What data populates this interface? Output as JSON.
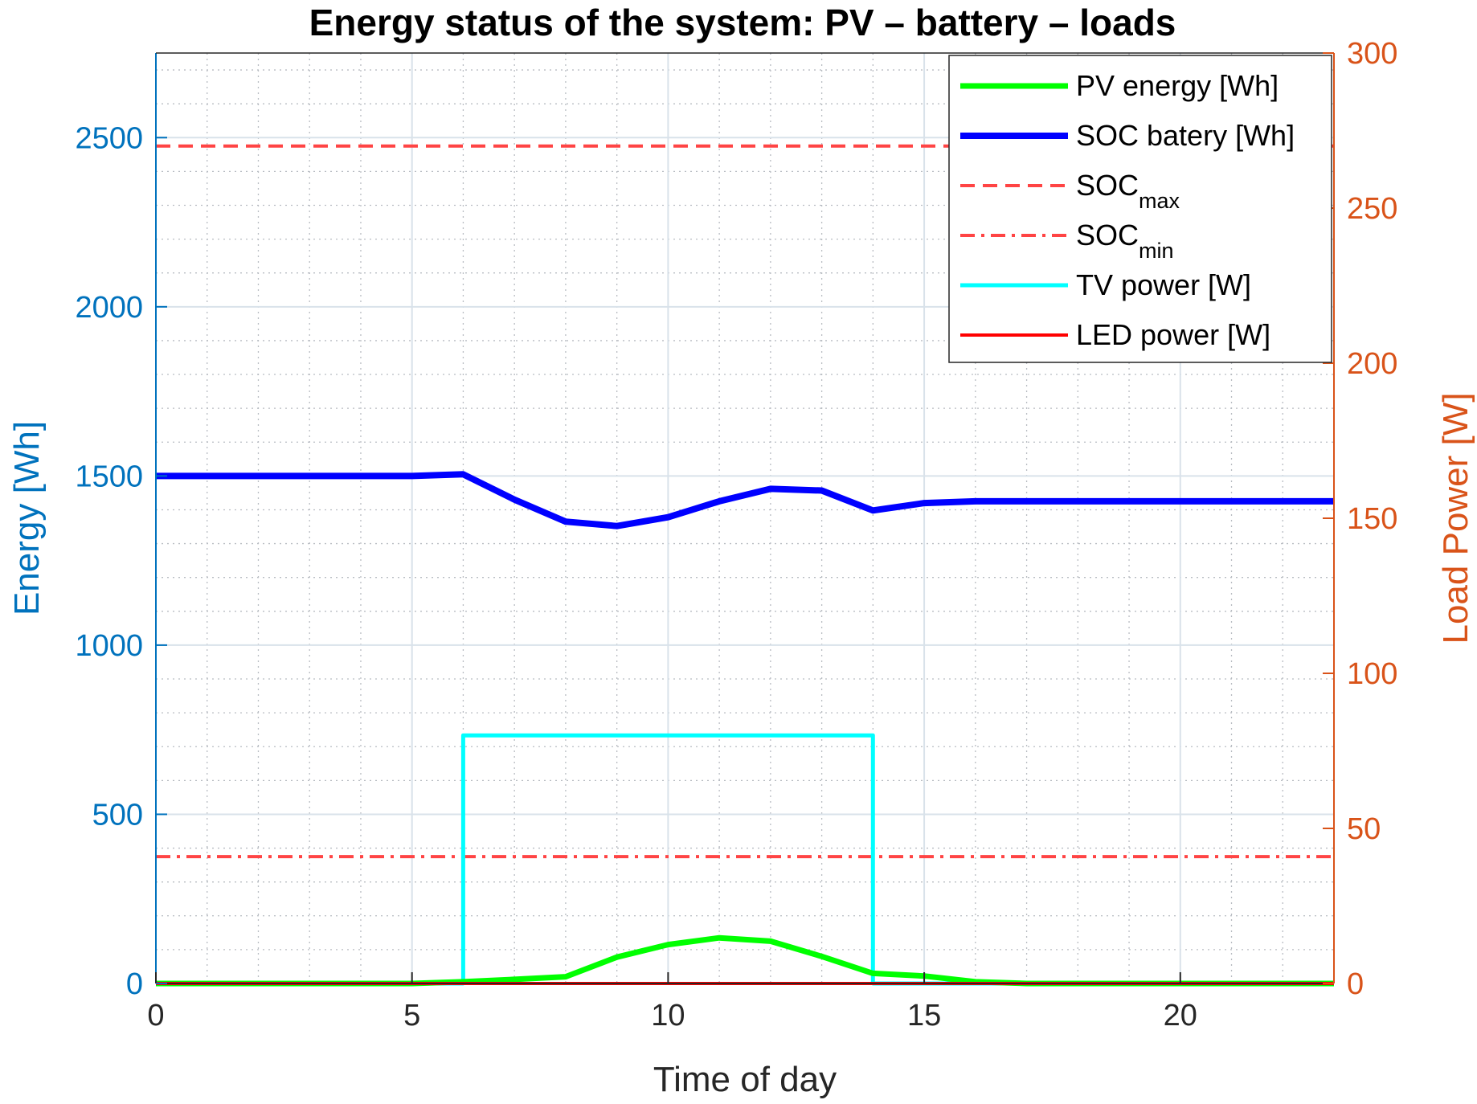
{
  "chart_data": {
    "type": "line",
    "title": "Energy status of the system: PV – battery – loads",
    "xlabel": "Time of day",
    "ylabel_left": "Energy [Wh]",
    "ylabel_right": "Load Power [W]",
    "xlim": [
      0,
      23
    ],
    "ylim_left": [
      0,
      2750
    ],
    "ylim_right": [
      0,
      300
    ],
    "xticks": [
      0,
      5,
      10,
      15,
      20
    ],
    "yticks_left": [
      0,
      500,
      1000,
      1500,
      2000,
      2500
    ],
    "yticks_right": [
      0,
      50,
      100,
      150,
      200,
      250,
      300
    ],
    "xtick_labels": [
      "0",
      "5",
      "10",
      "15",
      "20"
    ],
    "ytick_labels_left": [
      "0",
      "500",
      "1000",
      "1500",
      "2000",
      "2500"
    ],
    "ytick_labels_right": [
      "0",
      "50",
      "100",
      "150",
      "200",
      "250",
      "300"
    ],
    "grid": true,
    "legend_position": "top-right",
    "colors": {
      "left_axis": "#0072BD",
      "right_axis": "#D95319",
      "grid_major": "#d9e2ea",
      "grid_minor": "#b8bcc2"
    },
    "series": [
      {
        "name": "PV energy [Wh]",
        "legend_label": "PV energy [Wh]",
        "axis": "left",
        "color": "#00ff00",
        "style": "solid",
        "width": 7,
        "x": [
          0,
          1,
          2,
          3,
          4,
          5,
          6,
          7,
          8,
          9,
          10,
          11,
          12,
          13,
          14,
          15,
          16,
          17,
          18,
          19,
          20,
          21,
          22,
          23
        ],
        "y": [
          0,
          0,
          0,
          0,
          0,
          0,
          5,
          12,
          20,
          78,
          115,
          135,
          125,
          80,
          30,
          22,
          5,
          0,
          0,
          0,
          0,
          0,
          0,
          0
        ]
      },
      {
        "name": "SOC batery [Wh]",
        "legend_label": "SOC batery [Wh]",
        "axis": "left",
        "color": "#0000ff",
        "style": "solid",
        "width": 8,
        "x": [
          0,
          1,
          2,
          3,
          4,
          5,
          6,
          7,
          8,
          9,
          10,
          11,
          12,
          13,
          14,
          15,
          16,
          17,
          18,
          19,
          20,
          21,
          22,
          23
        ],
        "y": [
          1500,
          1500,
          1500,
          1500,
          1500,
          1500,
          1505,
          1430,
          1365,
          1352,
          1378,
          1425,
          1462,
          1457,
          1398,
          1420,
          1425,
          1425,
          1425,
          1425,
          1425,
          1425,
          1425,
          1425
        ]
      },
      {
        "name": "SOC max",
        "legend_label": "SOC",
        "legend_sub": "max",
        "axis": "left",
        "color": "#ff4444",
        "style": "dashed",
        "width": 4,
        "x": [
          0,
          23
        ],
        "y": [
          2475,
          2475
        ]
      },
      {
        "name": "SOC min",
        "legend_label": "SOC",
        "legend_sub": "min",
        "axis": "left",
        "color": "#ff4444",
        "style": "dashdot",
        "width": 4,
        "x": [
          0,
          23
        ],
        "y": [
          375,
          375
        ]
      },
      {
        "name": "TV power [W]",
        "legend_label": "TV power [W]",
        "axis": "right",
        "color": "#00ffff",
        "style": "solid",
        "width": 5,
        "x": [
          0,
          6,
          6,
          14,
          14,
          23
        ],
        "y": [
          0,
          0,
          80,
          80,
          0,
          0
        ]
      },
      {
        "name": "LED power [W]",
        "legend_label": "LED power [W]",
        "axis": "right",
        "color": "#ff0000",
        "style": "solid",
        "width": 4,
        "x": [
          0,
          23
        ],
        "y": [
          0,
          0
        ]
      }
    ]
  }
}
